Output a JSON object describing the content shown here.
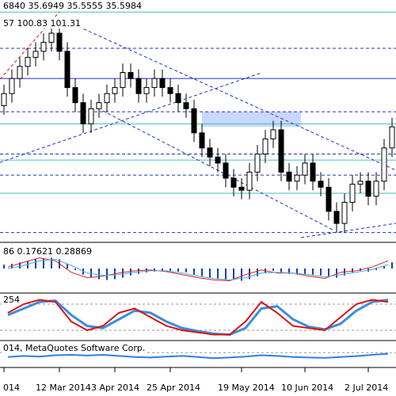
{
  "chart_data": [
    {
      "type": "candlestick",
      "ohlc_text": "6840 35.6949 35.5555 35.5984",
      "indicator_text": "57 100.83 101.31",
      "categories": [
        "014",
        null,
        null,
        null,
        null,
        null,
        null,
        "12 Mar 2014",
        null,
        null,
        null,
        null,
        null,
        null,
        "3 Apr 2014",
        null,
        null,
        null,
        null,
        null,
        null,
        "25 Apr 2014",
        null,
        null,
        null,
        null,
        null,
        null,
        null,
        null,
        "19 May 2014",
        null,
        null,
        null,
        null,
        null,
        null,
        null,
        "10 Jun 2014",
        null,
        null,
        null,
        null,
        null,
        null,
        null,
        "2 Jul 2014",
        null,
        null,
        null
      ],
      "open": [
        35.4,
        35.44,
        35.49,
        35.53,
        35.56,
        35.58,
        35.61,
        35.64,
        35.58,
        35.46,
        35.41,
        35.34,
        35.39,
        35.41,
        35.44,
        35.46,
        35.51,
        35.49,
        35.44,
        35.46,
        35.49,
        35.46,
        35.44,
        35.41,
        35.39,
        35.31,
        35.26,
        35.23,
        35.21,
        35.16,
        35.13,
        35.12,
        35.18,
        35.24,
        35.29,
        35.32,
        35.18,
        35.15,
        35.17,
        35.21,
        35.15,
        35.13,
        35.05,
        35.01,
        35.08,
        35.14,
        35.15,
        35.1,
        35.15,
        35.26
      ],
      "high": [
        35.47,
        35.52,
        35.56,
        35.59,
        35.61,
        35.64,
        35.68,
        35.67,
        35.61,
        35.49,
        35.44,
        35.42,
        35.44,
        35.47,
        35.49,
        35.54,
        35.54,
        35.52,
        35.49,
        35.52,
        35.52,
        35.49,
        35.47,
        35.44,
        35.42,
        35.34,
        35.29,
        35.26,
        35.24,
        35.19,
        35.16,
        35.21,
        35.27,
        35.32,
        35.35,
        35.35,
        35.21,
        35.2,
        35.24,
        35.24,
        35.18,
        35.16,
        35.08,
        35.11,
        35.17,
        35.18,
        35.18,
        35.18,
        35.29,
        35.36
      ],
      "low": [
        35.37,
        35.41,
        35.46,
        35.5,
        35.53,
        35.55,
        35.58,
        35.55,
        35.43,
        35.38,
        35.31,
        35.31,
        35.36,
        35.38,
        35.41,
        35.43,
        35.46,
        35.41,
        35.41,
        35.43,
        35.43,
        35.41,
        35.38,
        35.36,
        35.28,
        35.23,
        35.2,
        35.18,
        35.13,
        35.1,
        35.09,
        35.09,
        35.15,
        35.21,
        35.26,
        35.15,
        35.12,
        35.12,
        35.14,
        35.12,
        35.1,
        35.02,
        34.98,
        34.98,
        35.05,
        35.11,
        35.07,
        35.07,
        35.12,
        35.23
      ],
      "close": [
        35.44,
        35.49,
        35.53,
        35.56,
        35.58,
        35.61,
        35.64,
        35.58,
        35.46,
        35.41,
        35.34,
        35.39,
        35.41,
        35.44,
        35.46,
        35.51,
        35.49,
        35.44,
        35.46,
        35.49,
        35.46,
        35.44,
        35.41,
        35.39,
        35.31,
        35.26,
        35.23,
        35.21,
        35.16,
        35.13,
        35.12,
        35.18,
        35.24,
        35.29,
        35.32,
        35.18,
        35.15,
        35.17,
        35.21,
        35.15,
        35.13,
        35.05,
        35.01,
        35.08,
        35.14,
        35.15,
        35.1,
        35.15,
        35.26,
        35.33
      ],
      "ylim": [
        34.95,
        35.75
      ],
      "up_color": "#ffffff",
      "down_color": "#000000",
      "zone": [
        35.33,
        35.38
      ],
      "zone_color": "#c8d8ff",
      "levels": [
        {
          "value": 35.71,
          "color": "#40c0c0"
        },
        {
          "value": 35.59,
          "color": "#2030c0",
          "dashed": true
        },
        {
          "value": 35.49,
          "color": "#2030c0"
        },
        {
          "value": 35.38,
          "color": "#2030c0",
          "dashed": true
        },
        {
          "value": 35.34,
          "color": "#40c0c0"
        },
        {
          "value": 35.24,
          "color": "#2030c0",
          "dashed": true
        },
        {
          "value": 35.22,
          "color": "#40c0c0"
        },
        {
          "value": 35.17,
          "color": "#2030c0",
          "dashed": true
        },
        {
          "value": 35.11,
          "color": "#40c0c0"
        },
        {
          "value": 34.98,
          "color": "#2030c0",
          "dashed": true
        }
      ]
    },
    {
      "type": "macd",
      "label": "86 0.17621 0.28869",
      "ylim": [
        -0.3,
        0.3
      ],
      "histogram": {
        "color": "#1a3fb0",
        "values": [
          0.05,
          0.06,
          0.08,
          0.1,
          0.12,
          0.13,
          0.14,
          0.12,
          0.06,
          -0.02,
          -0.08,
          -0.12,
          -0.14,
          -0.15,
          -0.14,
          -0.12,
          -0.09,
          -0.07,
          -0.05,
          -0.04,
          -0.03,
          -0.03,
          -0.04,
          -0.05,
          -0.08,
          -0.1,
          -0.12,
          -0.13,
          -0.14,
          -0.15,
          -0.16,
          -0.14,
          -0.1,
          -0.06,
          -0.03,
          -0.05,
          -0.07,
          -0.08,
          -0.07,
          -0.08,
          -0.09,
          -0.11,
          -0.12,
          -0.09,
          -0.05,
          -0.03,
          -0.04,
          -0.02,
          0.03,
          0.08
        ]
      },
      "series": [
        {
          "color": "#e02020",
          "values": [
            0.02,
            0.08,
            0.14,
            0.1,
            -0.05,
            -0.12,
            -0.1,
            -0.06,
            -0.03,
            -0.02,
            -0.04,
            -0.08,
            -0.12,
            -0.15,
            -0.16,
            -0.08,
            -0.02,
            -0.06,
            -0.06,
            -0.1,
            -0.13,
            -0.05,
            -0.03,
            0.02,
            0.1
          ]
        },
        {
          "color": "#40b0e0",
          "values": [
            0.0,
            0.04,
            0.1,
            0.12,
            0.04,
            -0.06,
            -0.09,
            -0.08,
            -0.05,
            -0.03,
            -0.03,
            -0.06,
            -0.1,
            -0.13,
            -0.15,
            -0.12,
            -0.06,
            -0.05,
            -0.06,
            -0.08,
            -0.11,
            -0.08,
            -0.05,
            -0.01,
            0.05
          ]
        }
      ]
    },
    {
      "type": "line",
      "label": "254",
      "ylim": [
        0,
        100
      ],
      "levels": [
        {
          "value": 80
        },
        {
          "value": 20
        }
      ],
      "series": [
        {
          "color": "#3a8ee0",
          "width": 3,
          "values": [
            55,
            70,
            85,
            88,
            55,
            30,
            25,
            45,
            65,
            60,
            40,
            25,
            18,
            12,
            10,
            25,
            70,
            75,
            45,
            28,
            22,
            35,
            65,
            85,
            90
          ]
        },
        {
          "color": "#e01010",
          "width": 2,
          "values": [
            60,
            80,
            90,
            85,
            40,
            20,
            30,
            60,
            70,
            50,
            30,
            20,
            15,
            10,
            10,
            40,
            85,
            60,
            30,
            25,
            20,
            50,
            80,
            90,
            85
          ]
        }
      ]
    },
    {
      "type": "line",
      "label": "014, MetaQuotes Software Corp.",
      "ylim": [
        0,
        100
      ],
      "levels": [
        {
          "value": 60
        }
      ],
      "series": [
        {
          "color": "#2f7fe0",
          "width": 2,
          "values": [
            40,
            45,
            42,
            48,
            50,
            47,
            50,
            45,
            40,
            38,
            42,
            45,
            40,
            35,
            38,
            42,
            48,
            45,
            40,
            38,
            36,
            40,
            44,
            50,
            55
          ]
        }
      ]
    }
  ]
}
